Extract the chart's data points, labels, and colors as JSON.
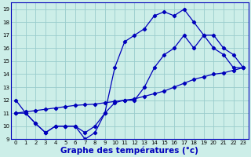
{
  "bg_color": "#cceee8",
  "line_color": "#0000bb",
  "grid_color": "#99cccc",
  "xlabel": "Graphe des températures (°c)",
  "xlabel_fontsize": 7.5,
  "ylim": [
    9,
    19.5
  ],
  "xlim": [
    -0.5,
    23.5
  ],
  "yticks": [
    9,
    10,
    11,
    12,
    13,
    14,
    15,
    16,
    17,
    18,
    19
  ],
  "xticks": [
    0,
    1,
    2,
    3,
    4,
    5,
    6,
    7,
    8,
    9,
    10,
    11,
    12,
    13,
    14,
    15,
    16,
    17,
    18,
    19,
    20,
    21,
    22,
    23
  ],
  "series1_x": [
    0,
    1,
    2,
    3,
    4,
    5,
    6,
    7,
    8,
    9,
    10,
    11,
    12,
    13,
    14,
    15,
    16,
    17,
    18,
    19,
    20,
    21,
    22,
    23
  ],
  "series1_y": [
    12,
    11,
    10.2,
    9.5,
    10,
    10,
    10,
    9,
    9.5,
    11,
    14.5,
    16.5,
    17,
    17.5,
    18.5,
    18.8,
    18.5,
    19,
    18,
    17,
    16,
    15.5,
    14.5,
    14.5
  ],
  "series2_x": [
    0,
    1,
    2,
    3,
    4,
    5,
    6,
    7,
    8,
    9,
    10,
    11,
    12,
    13,
    14,
    15,
    16,
    17,
    18,
    19,
    20,
    21,
    22,
    23
  ],
  "series2_y": [
    11,
    11,
    10.2,
    9.5,
    10,
    10,
    10,
    9.5,
    10,
    11,
    11.8,
    12,
    12,
    13,
    14.5,
    15.5,
    16,
    17,
    16,
    17,
    17,
    16,
    15.5,
    14.5
  ],
  "series3_x": [
    0,
    1,
    2,
    3,
    4,
    5,
    6,
    7,
    8,
    9,
    10,
    11,
    12,
    13,
    14,
    15,
    16,
    17,
    18,
    19,
    20,
    21,
    22,
    23
  ],
  "series3_y": [
    11,
    11.1,
    11.2,
    11.3,
    11.4,
    11.5,
    11.6,
    11.65,
    11.7,
    11.8,
    11.9,
    12,
    12.1,
    12.3,
    12.5,
    12.7,
    13,
    13.3,
    13.6,
    13.8,
    14,
    14.1,
    14.3,
    14.5
  ]
}
